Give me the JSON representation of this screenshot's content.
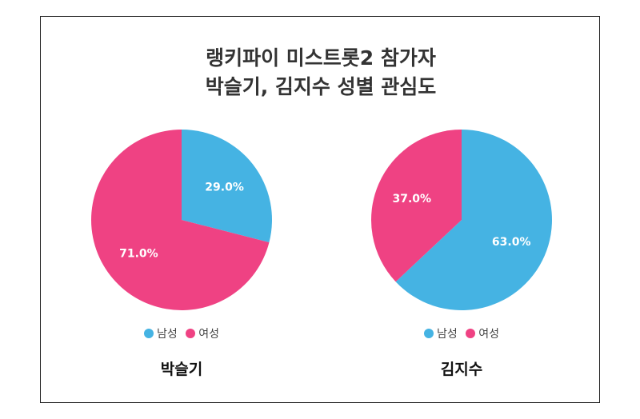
{
  "title": {
    "line1": "랭키파이 미스트롯2 참가자",
    "line2": "박슬기, 김지수 성별 관심도"
  },
  "legend": {
    "male": "남성",
    "female": "여성"
  },
  "colors": {
    "male": "#45B3E3",
    "female": "#EF4283"
  },
  "chart_data": [
    {
      "type": "pie",
      "title": "박슬기",
      "categories": [
        "남성",
        "여성"
      ],
      "values": [
        29.0,
        71.0
      ],
      "data_labels": [
        "29.0%",
        "71.0%"
      ]
    },
    {
      "type": "pie",
      "title": "김지수",
      "categories": [
        "남성",
        "여성"
      ],
      "values": [
        63.0,
        37.0
      ],
      "data_labels": [
        "63.0%",
        "37.0%"
      ]
    }
  ]
}
